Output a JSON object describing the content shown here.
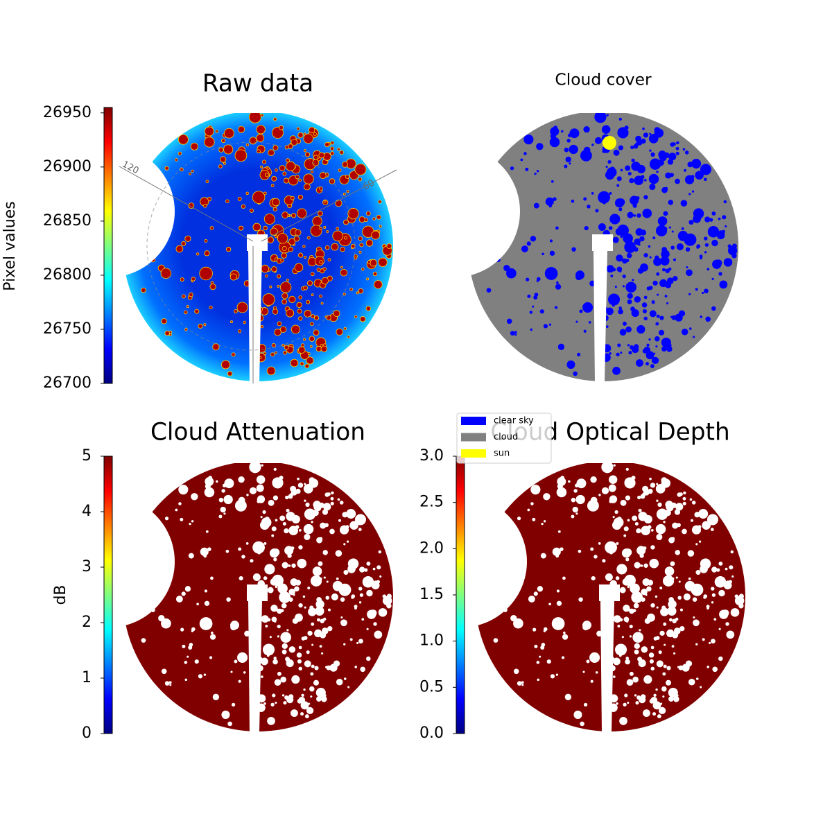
{
  "chart_data": [
    {
      "type": "image",
      "title": "Raw data",
      "fill": "raw",
      "colorbar": {
        "label": "Pixel values",
        "colormap": "jet",
        "lim": [
          26700,
          26955
        ],
        "ticks": [
          26700,
          26750,
          26800,
          26850,
          26900,
          26950
        ]
      },
      "annotations": [
        "120",
        "60"
      ]
    },
    {
      "type": "image",
      "title": "Cloud cover",
      "fill": "mask",
      "legend": [
        {
          "name": "clear sky",
          "color": "#0000ff"
        },
        {
          "name": "cloud",
          "color": "#808080"
        },
        {
          "name": "sun",
          "color": "#ffff00"
        }
      ]
    },
    {
      "type": "image",
      "title": "Cloud Attenuation",
      "fill": "binary",
      "colorbar": {
        "label": "dB",
        "colormap": "jet",
        "lim": [
          0,
          5
        ],
        "ticks": [
          0,
          1,
          2,
          3,
          4,
          5
        ]
      }
    },
    {
      "type": "image",
      "title": "Cloud Optical Depth",
      "fill": "binary",
      "colorbar": {
        "colormap": "jet",
        "lim": [
          0,
          3
        ],
        "ticks": [
          {
            "value": 0,
            "label": "0.0"
          },
          {
            "value": 0.5,
            "label": "0.5"
          },
          {
            "value": 1,
            "label": "1.0"
          },
          {
            "value": 1.5,
            "label": "1.5"
          },
          {
            "value": 2,
            "label": "2.0"
          },
          {
            "value": 2.5,
            "label": "2.5"
          },
          {
            "value": 3,
            "label": "3.0"
          }
        ]
      }
    }
  ]
}
